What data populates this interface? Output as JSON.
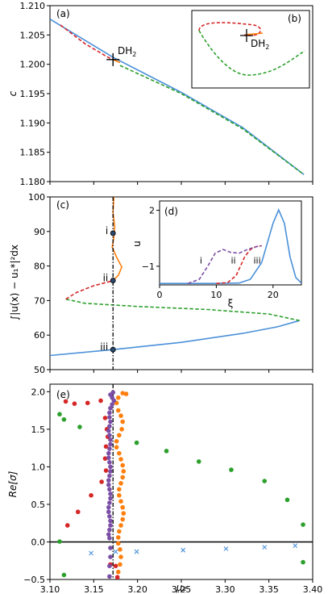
{
  "chart_data": [
    {
      "type": "line",
      "panel_label": "(a)",
      "ylabel": "c",
      "xlim": [
        3.1,
        3.4
      ],
      "ylim": [
        1.18,
        1.21
      ],
      "yticks": [
        "1.180",
        "1.185",
        "1.190",
        "1.195",
        "1.200",
        "1.205",
        "1.210"
      ],
      "ytick_values": [
        1.18,
        1.185,
        1.19,
        1.195,
        1.2,
        1.205,
        1.21
      ],
      "marker_label": "DH",
      "marker_sub": "2",
      "marker": {
        "x": 3.172,
        "y": 1.2008
      },
      "series": [
        {
          "color": "#4a90d9",
          "dash": false,
          "points": [
            [
              3.1,
              1.2077
            ],
            [
              3.172,
              1.2012
            ],
            [
              3.25,
              1.1952
            ],
            [
              3.32,
              1.1892
            ],
            [
              3.39,
              1.1812
            ]
          ]
        },
        {
          "color": "#2ca02c",
          "dash": true,
          "points": [
            [
              3.18,
              1.1998
            ],
            [
              3.25,
              1.195
            ],
            [
              3.32,
              1.189
            ],
            [
              3.39,
              1.1812
            ]
          ]
        },
        {
          "color": "#d62728",
          "dash": true,
          "points": [
            [
              3.112,
              1.2067
            ],
            [
              3.14,
              1.2035
            ],
            [
              3.165,
              1.2013
            ],
            [
              3.172,
              1.2008
            ]
          ]
        },
        {
          "color": "#ff7f0e",
          "dash": false,
          "points": [
            [
              3.172,
              1.2008
            ],
            [
              3.18,
              1.2003
            ]
          ]
        }
      ]
    },
    {
      "type": "line",
      "panel_label": "(b)",
      "marker_label": "DH",
      "marker_sub": "2"
    },
    {
      "type": "line",
      "panel_label": "(c)",
      "ylabel": "∫|u(x) − u₁*|²dx",
      "xlim": [
        3.1,
        3.4
      ],
      "ylim": [
        50,
        100
      ],
      "yticks": [
        "50",
        "60",
        "70",
        "80",
        "90",
        "100"
      ],
      "ytick_values": [
        50,
        60,
        70,
        80,
        90,
        100
      ],
      "vline_x": 3.172,
      "point_labels": [
        "i",
        "ii",
        "iii"
      ],
      "points": [
        {
          "x": 3.172,
          "y": 89.5
        },
        {
          "x": 3.172,
          "y": 75.8
        },
        {
          "x": 3.172,
          "y": 55.8
        }
      ],
      "series": [
        {
          "color": "#4a90d9",
          "dash": false,
          "points": [
            [
              3.1,
              54.1
            ],
            [
              3.172,
              55.8
            ],
            [
              3.25,
              57.9
            ],
            [
              3.32,
              60.5
            ],
            [
              3.36,
              62.4
            ],
            [
              3.385,
              64.2
            ]
          ]
        },
        {
          "color": "#2ca02c",
          "dash": true,
          "points": [
            [
              3.385,
              64.2
            ],
            [
              3.35,
              66.1
            ],
            [
              3.28,
              67.4
            ],
            [
              3.2,
              68.3
            ],
            [
              3.14,
              69.2
            ],
            [
              3.118,
              70.4
            ]
          ]
        },
        {
          "color": "#d62728",
          "dash": true,
          "points": [
            [
              3.118,
              70.4
            ],
            [
              3.13,
              72.3
            ],
            [
              3.15,
              74.3
            ],
            [
              3.17,
              75.6
            ],
            [
              3.172,
              75.8
            ]
          ]
        },
        {
          "color": "#ff7f0e",
          "dash": false,
          "points": [
            [
              3.172,
              75.8
            ],
            [
              3.178,
              77.3
            ],
            [
              3.182,
              79.7
            ],
            [
              3.176,
              82.6
            ],
            [
              3.171,
              85.5
            ],
            [
              3.173,
              88.3
            ],
            [
              3.174,
              91.5
            ],
            [
              3.172,
              95.5
            ],
            [
              3.173,
              100
            ]
          ]
        }
      ]
    },
    {
      "type": "line",
      "panel_label": "(d)",
      "xlabel": "ξ",
      "ylabel": "u",
      "xlim": [
        0,
        25
      ],
      "ylim": [
        -2,
        2.5
      ],
      "xticks": [
        "0",
        "10",
        "20"
      ],
      "xtick_values": [
        0,
        10,
        20
      ],
      "yticks": [
        "−1",
        "2"
      ],
      "ytick_values": [
        -1,
        2
      ],
      "curve_labels": [
        "i",
        "ii",
        "iii"
      ],
      "series": [
        {
          "color": "#4a90d9",
          "dash": false,
          "points": [
            [
              0,
              -1.92
            ],
            [
              10,
              -1.92
            ],
            [
              14,
              -1.9
            ],
            [
              16,
              -1.7
            ],
            [
              18,
              -0.8
            ],
            [
              20,
              1.3
            ],
            [
              21,
              2.02
            ],
            [
              22,
              1.3
            ],
            [
              23,
              -0.5
            ],
            [
              24,
              -1.6
            ],
            [
              25,
              -1.9
            ]
          ]
        },
        {
          "color": "#d62728",
          "dash": true,
          "points": [
            [
              10,
              -1.92
            ],
            [
              12,
              -1.88
            ],
            [
              13.5,
              -1.5
            ],
            [
              15,
              -0.5
            ],
            [
              16,
              -0.1
            ],
            [
              17,
              0.05
            ],
            [
              18,
              0.1
            ]
          ]
        },
        {
          "color": "#7b4fa6",
          "dash": true,
          "points": [
            [
              5,
              -1.92
            ],
            [
              7,
              -1.7
            ],
            [
              8.5,
              -1.0
            ],
            [
              9.8,
              -0.3
            ],
            [
              11.2,
              -0.1
            ],
            [
              12.5,
              -0.25
            ],
            [
              14,
              -0.3
            ],
            [
              15.5,
              -0.1
            ],
            [
              17,
              0.05
            ],
            [
              18,
              0.1
            ]
          ]
        }
      ]
    },
    {
      "type": "scatter",
      "panel_label": "(e)",
      "xlabel": "μ₂",
      "ylabel": "Re[σ]",
      "xlim": [
        3.1,
        3.4
      ],
      "ylim": [
        -0.5,
        2.1
      ],
      "xticks": [
        "3.10",
        "3.15",
        "3.20",
        "3.25",
        "3.30",
        "3.35",
        "3.40"
      ],
      "xtick_values": [
        3.1,
        3.15,
        3.2,
        3.25,
        3.3,
        3.35,
        3.4
      ],
      "yticks": [
        "−0.5",
        "0.0",
        "0.5",
        "1.0",
        "1.5",
        "2.0"
      ],
      "ytick_values": [
        -0.5,
        0,
        0.5,
        1.0,
        1.5,
        2.0
      ],
      "vline_x": 3.172,
      "series": [
        {
          "color": "#2ca02c",
          "marker": "dot",
          "points": [
            [
              3.111,
              1.7
            ],
            [
              3.116,
              1.63
            ],
            [
              3.134,
              1.53
            ],
            [
              3.199,
              1.32
            ],
            [
              3.233,
              1.21
            ],
            [
              3.27,
              1.07
            ],
            [
              3.307,
              0.96
            ],
            [
              3.345,
              0.81
            ],
            [
              3.371,
              0.56
            ],
            [
              3.389,
              0.23
            ],
            [
              3.389,
              -0.27
            ],
            [
              3.111,
              0.005
            ],
            [
              3.116,
              -0.44
            ]
          ]
        },
        {
          "color": "#d62728",
          "marker": "dot",
          "points": [
            [
              3.118,
              1.87
            ],
            [
              3.128,
              1.84
            ],
            [
              3.143,
              1.85
            ],
            [
              3.158,
              1.88
            ],
            [
              3.163,
              1.65
            ],
            [
              3.165,
              1.5
            ],
            [
              3.166,
              1.4
            ],
            [
              3.164,
              1.27
            ],
            [
              3.163,
              1.11
            ],
            [
              3.164,
              0.95
            ],
            [
              3.159,
              0.8
            ],
            [
              3.147,
              0.62
            ],
            [
              3.132,
              0.4
            ],
            [
              3.12,
              0.22
            ],
            [
              3.175,
              -0.32
            ],
            [
              3.177,
              -0.47
            ],
            [
              3.169,
              -0.3
            ]
          ]
        },
        {
          "color": "#ff7f0e",
          "marker": "dot",
          "points": [
            [
              3.183,
              1.98
            ],
            [
              3.187,
              1.97
            ],
            [
              3.178,
              1.92
            ],
            [
              3.176,
              1.85
            ],
            [
              3.178,
              1.75
            ],
            [
              3.181,
              1.68
            ],
            [
              3.183,
              1.6
            ],
            [
              3.182,
              1.5
            ],
            [
              3.179,
              1.42
            ],
            [
              3.176,
              1.34
            ],
            [
              3.176,
              1.26
            ],
            [
              3.179,
              1.18
            ],
            [
              3.181,
              1.1
            ],
            [
              3.183,
              1.02
            ],
            [
              3.184,
              0.94
            ],
            [
              3.183,
              0.86
            ],
            [
              3.181,
              0.78
            ],
            [
              3.179,
              0.7
            ],
            [
              3.179,
              0.62
            ],
            [
              3.181,
              0.54
            ],
            [
              3.183,
              0.46
            ],
            [
              3.184,
              0.38
            ],
            [
              3.183,
              0.3
            ],
            [
              3.181,
              0.22
            ],
            [
              3.179,
              0.14
            ],
            [
              3.178,
              0.06
            ],
            [
              3.178,
              -0.02
            ],
            [
              3.18,
              -0.1
            ],
            [
              3.181,
              -0.2
            ],
            [
              3.18,
              -0.3
            ],
            [
              3.178,
              -0.4
            ]
          ]
        },
        {
          "color": "#7b4fa6",
          "marker": "dot",
          "points": [
            [
              3.172,
              1.99
            ],
            [
              3.169,
              1.96
            ],
            [
              3.171,
              1.92
            ],
            [
              3.173,
              1.88
            ],
            [
              3.171,
              1.83
            ],
            [
              3.169,
              1.78
            ],
            [
              3.168,
              1.72
            ],
            [
              3.168,
              1.66
            ],
            [
              3.169,
              1.6
            ],
            [
              3.168,
              1.54
            ],
            [
              3.167,
              1.48
            ],
            [
              3.168,
              1.42
            ],
            [
              3.169,
              1.36
            ],
            [
              3.169,
              1.3
            ],
            [
              3.168,
              1.24
            ],
            [
              3.167,
              1.18
            ],
            [
              3.167,
              1.12
            ],
            [
              3.168,
              1.06
            ],
            [
              3.169,
              1.0
            ],
            [
              3.169,
              0.94
            ],
            [
              3.168,
              0.88
            ],
            [
              3.167,
              0.82
            ],
            [
              3.167,
              0.76
            ],
            [
              3.168,
              0.7
            ],
            [
              3.169,
              0.64
            ],
            [
              3.169,
              0.58
            ],
            [
              3.168,
              0.52
            ],
            [
              3.167,
              0.46
            ],
            [
              3.167,
              0.4
            ],
            [
              3.168,
              0.34
            ],
            [
              3.169,
              0.28
            ],
            [
              3.169,
              0.22
            ],
            [
              3.168,
              0.16
            ],
            [
              3.167,
              0.1
            ],
            [
              3.168,
              0.05
            ],
            [
              3.169,
              -0.08
            ],
            [
              3.169,
              -0.2
            ],
            [
              3.168,
              -0.32
            ],
            [
              3.168,
              -0.46
            ]
          ]
        },
        {
          "color": "#4a90d9",
          "marker": "x",
          "points": [
            [
              3.147,
              -0.15
            ],
            [
              3.175,
              -0.13
            ],
            [
              3.199,
              -0.13
            ],
            [
              3.252,
              -0.11
            ],
            [
              3.301,
              -0.09
            ],
            [
              3.345,
              -0.07
            ],
            [
              3.38,
              -0.05
            ]
          ]
        }
      ]
    }
  ]
}
